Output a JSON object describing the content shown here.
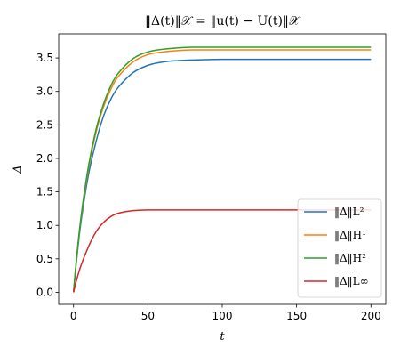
{
  "chart_data": {
    "type": "line",
    "title": "‖Δ(t)‖𝒳 = ‖u(t) − U(t)‖𝒳",
    "xlabel": "t",
    "ylabel": "Δ",
    "xlim": [
      -10,
      210
    ],
    "ylim": [
      -0.18,
      3.86
    ],
    "x_ticks": [
      0,
      50,
      100,
      150,
      200
    ],
    "y_ticks": [
      0.0,
      0.5,
      1.0,
      1.5,
      2.0,
      2.5,
      3.0,
      3.5
    ],
    "x_tick_labels": [
      "0",
      "50",
      "100",
      "150",
      "200"
    ],
    "y_tick_labels": [
      "0.0",
      "0.5",
      "1.0",
      "1.5",
      "2.0",
      "2.5",
      "3.0",
      "3.5"
    ],
    "grid": false,
    "legend_position": "lower right",
    "x": [
      0,
      2,
      5,
      10,
      15,
      20,
      25,
      30,
      40,
      50,
      60,
      70,
      80,
      100,
      120,
      150,
      200
    ],
    "series": [
      {
        "name": "‖Δ‖L²",
        "color": "#1f77b4",
        "values": [
          0.0,
          0.47,
          1.05,
          1.75,
          2.24,
          2.62,
          2.88,
          3.06,
          3.28,
          3.39,
          3.44,
          3.46,
          3.47,
          3.48,
          3.48,
          3.48,
          3.48
        ]
      },
      {
        "name": "‖Δ‖H¹",
        "color": "#ff7f0e",
        "values": [
          0.0,
          0.49,
          1.1,
          1.84,
          2.38,
          2.76,
          3.03,
          3.22,
          3.44,
          3.55,
          3.59,
          3.61,
          3.62,
          3.62,
          3.62,
          3.62,
          3.62
        ]
      },
      {
        "name": "‖Δ‖H²",
        "color": "#2ca02c",
        "values": [
          0.0,
          0.5,
          1.12,
          1.88,
          2.42,
          2.8,
          3.08,
          3.27,
          3.49,
          3.59,
          3.63,
          3.65,
          3.66,
          3.66,
          3.66,
          3.66,
          3.66
        ]
      },
      {
        "name": "‖Δ‖L∞",
        "color": "#d62728",
        "values": [
          0.0,
          0.18,
          0.4,
          0.68,
          0.9,
          1.04,
          1.13,
          1.18,
          1.22,
          1.23,
          1.23,
          1.23,
          1.23,
          1.23,
          1.23,
          1.23,
          1.23
        ]
      }
    ]
  }
}
